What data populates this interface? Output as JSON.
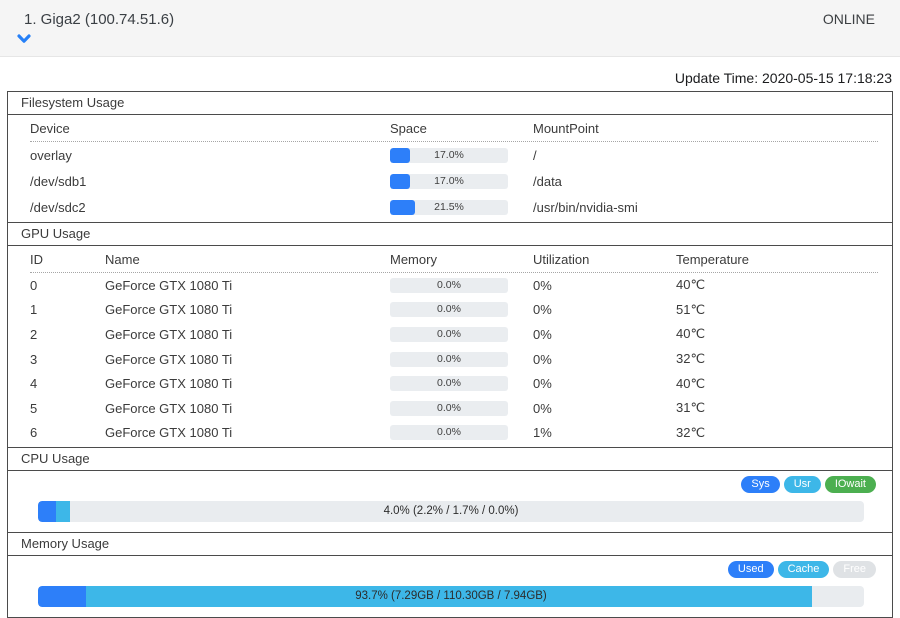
{
  "header": {
    "title": "1. Giga2 (100.74.51.6)",
    "status": "ONLINE"
  },
  "update_time": "Update Time: 2020-05-15 17:18:23",
  "colors": {
    "blue": "#2d7ff9",
    "cyan": "#3db7e8",
    "green": "#4caf50",
    "free_gray": "#dfe2e5",
    "bar_bg": "#e9ecef"
  },
  "filesystem": {
    "title": "Filesystem Usage",
    "columns": [
      "Device",
      "Space",
      "MountPoint"
    ],
    "rows": [
      {
        "device": "overlay",
        "space_pct": 17.0,
        "space_label": "17.0%",
        "mount": "/"
      },
      {
        "device": "/dev/sdb1",
        "space_pct": 17.0,
        "space_label": "17.0%",
        "mount": "/data"
      },
      {
        "device": "/dev/sdc2",
        "space_pct": 21.5,
        "space_label": "21.5%",
        "mount": "/usr/bin/nvidia-smi"
      }
    ]
  },
  "gpu": {
    "title": "GPU Usage",
    "columns": [
      "ID",
      "Name",
      "Memory",
      "Utilization",
      "Temperature"
    ],
    "rows": [
      {
        "id": "0",
        "name": "GeForce GTX 1080 Ti",
        "memory_pct": 0,
        "memory_label": "0.0%",
        "utilization": "0%",
        "temperature": "40℃"
      },
      {
        "id": "1",
        "name": "GeForce GTX 1080 Ti",
        "memory_pct": 0,
        "memory_label": "0.0%",
        "utilization": "0%",
        "temperature": "51℃"
      },
      {
        "id": "2",
        "name": "GeForce GTX 1080 Ti",
        "memory_pct": 0,
        "memory_label": "0.0%",
        "utilization": "0%",
        "temperature": "40℃"
      },
      {
        "id": "3",
        "name": "GeForce GTX 1080 Ti",
        "memory_pct": 0,
        "memory_label": "0.0%",
        "utilization": "0%",
        "temperature": "32℃"
      },
      {
        "id": "4",
        "name": "GeForce GTX 1080 Ti",
        "memory_pct": 0,
        "memory_label": "0.0%",
        "utilization": "0%",
        "temperature": "40℃"
      },
      {
        "id": "5",
        "name": "GeForce GTX 1080 Ti",
        "memory_pct": 0,
        "memory_label": "0.0%",
        "utilization": "0%",
        "temperature": "31℃"
      },
      {
        "id": "6",
        "name": "GeForce GTX 1080 Ti",
        "memory_pct": 0,
        "memory_label": "0.0%",
        "utilization": "1%",
        "temperature": "32℃"
      }
    ]
  },
  "cpu": {
    "title": "CPU Usage",
    "legend": [
      {
        "label": "Sys",
        "color": "#2d7ff9"
      },
      {
        "label": "Usr",
        "color": "#3db7e8"
      },
      {
        "label": "IOwait",
        "color": "#4caf50"
      }
    ],
    "bar": {
      "label": "4.0% (2.2% / 1.7% / 0.0%)",
      "segments": [
        {
          "name": "sys",
          "pct": 2.2,
          "color": "#2d7ff9"
        },
        {
          "name": "usr",
          "pct": 1.7,
          "color": "#3db7e8"
        },
        {
          "name": "iowait",
          "pct": 0.0,
          "color": "#4caf50"
        }
      ]
    }
  },
  "memory": {
    "title": "Memory Usage",
    "legend": [
      {
        "label": "Used",
        "color": "#2d7ff9"
      },
      {
        "label": "Cache",
        "color": "#3db7e8"
      },
      {
        "label": "Free",
        "color": "#dfe2e5"
      }
    ],
    "bar": {
      "label": "93.7% (7.29GB / 110.30GB / 7.94GB)",
      "segments": [
        {
          "name": "used",
          "pct": 5.8,
          "color": "#2d7ff9"
        },
        {
          "name": "cache",
          "pct": 87.9,
          "color": "#3db7e8"
        }
      ]
    }
  }
}
